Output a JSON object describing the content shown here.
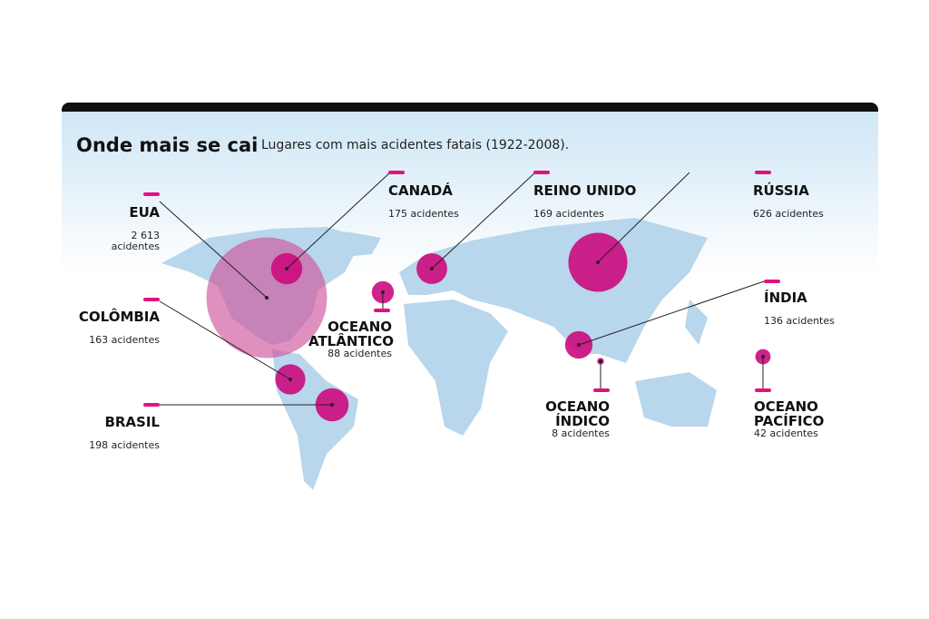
{
  "title": "Onde mais se cai",
  "subtitle": "Lugares com mais acidentes fatais (1922-2008).",
  "locations": [
    {
      "name": "EUA",
      "accidents": 2613,
      "label": "2 613 acidentes"
    },
    {
      "name": "CANADÁ",
      "accidents": 175,
      "label": "175 acidentes"
    },
    {
      "name": "REINO UNIDO",
      "accidents": 169,
      "label": "169 acidentes"
    },
    {
      "name": "RÚSSIA",
      "accidents": 626,
      "label": "626 acidentes"
    },
    {
      "name": "ÍNDIA",
      "accidents": 136,
      "label": "136 acidentes"
    },
    {
      "name": "COLÔMBIA",
      "accidents": 163,
      "label": "163 acidentes"
    },
    {
      "name": "BRASIL",
      "accidents": 198,
      "label": "198 acidentes"
    },
    {
      "name": "OCEANO ATLÂNTICO",
      "accidents": 88,
      "label": "88 acidentes"
    },
    {
      "name": "OCEANO ÍNDICO",
      "accidents": 8,
      "label": "8 acidentes"
    },
    {
      "name": "OCEANO PACÍFICO",
      "accidents": 42,
      "label": "42 acidentes"
    }
  ]
}
